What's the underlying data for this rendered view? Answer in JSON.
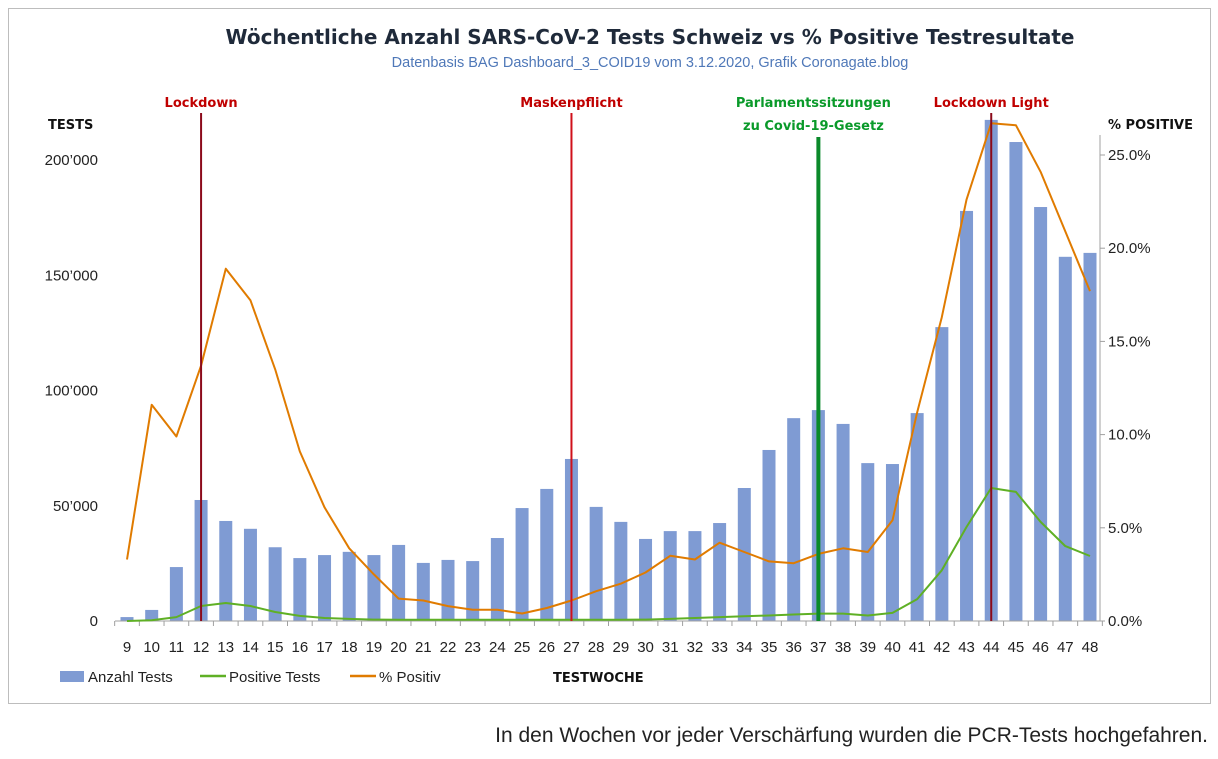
{
  "caption": "In den Wochen vor jeder Verschärfung wurden die PCR-Tests hochgefahren.",
  "chart_data": {
    "type": "bar+line",
    "title": "Wöchentliche Anzahl SARS-CoV-2 Tests Schweiz vs % Positive Testresultate",
    "subtitle": "Datenbasis BAG Dashboard_3_COID19 vom 3.12.2020, Grafik Coronagate.blog",
    "xlabel": "TESTWOCHE",
    "ylabel_left": "TESTS",
    "ylabel_right": "% POSITIVE",
    "ylim_left": [
      0,
      200000
    ],
    "ylim_right": [
      0,
      25
    ],
    "left_ticks": [
      {
        "v": 0,
        "label": "0"
      },
      {
        "v": 50000,
        "label": "50’000"
      },
      {
        "v": 100000,
        "label": "100’000"
      },
      {
        "v": 150000,
        "label": "150’000"
      },
      {
        "v": 200000,
        "label": "200’000"
      }
    ],
    "right_ticks": [
      {
        "v": 0,
        "label": "0.0%"
      },
      {
        "v": 5,
        "label": "5.0%"
      },
      {
        "v": 10,
        "label": "10.0%"
      },
      {
        "v": 15,
        "label": "15.0%"
      },
      {
        "v": 20,
        "label": "20.0%"
      },
      {
        "v": 25,
        "label": "25.0%"
      }
    ],
    "categories": [
      "9",
      "10",
      "11",
      "12",
      "13",
      "14",
      "15",
      "16",
      "17",
      "18",
      "19",
      "20",
      "21",
      "22",
      "23",
      "24",
      "25",
      "26",
      "27",
      "28",
      "29",
      "30",
      "31",
      "32",
      "33",
      "34",
      "35",
      "36",
      "37",
      "38",
      "39",
      "40",
      "41",
      "42",
      "43",
      "44",
      "45",
      "46",
      "47",
      "48"
    ],
    "series": [
      {
        "name": "Anzahl Tests",
        "type": "bar",
        "axis": "left",
        "color": "#7f9bd3",
        "values": [
          1700,
          4800,
          23400,
          52500,
          43400,
          40000,
          32000,
          27300,
          28600,
          30000,
          28600,
          33000,
          25200,
          26500,
          26000,
          36000,
          49000,
          57300,
          70300,
          49500,
          43000,
          35600,
          39000,
          39000,
          42500,
          57700,
          74200,
          88000,
          91500,
          85500,
          68500,
          68100,
          90200,
          127500,
          177900,
          217400,
          207800,
          179600,
          158000,
          159700
        ]
      },
      {
        "name": "Positive Tests",
        "type": "line",
        "axis": "left",
        "color": "#5fb025",
        "values": [
          0,
          300,
          1700,
          6500,
          7800,
          6500,
          3900,
          2200,
          1300,
          900,
          600,
          500,
          500,
          500,
          500,
          500,
          500,
          500,
          500,
          500,
          500,
          600,
          900,
          1300,
          1700,
          2100,
          2400,
          2800,
          3200,
          3200,
          2400,
          3500,
          9500,
          22000,
          40800,
          57700,
          56000,
          43000,
          32500,
          28200
        ]
      },
      {
        "name": "% Positiv",
        "type": "line",
        "axis": "right",
        "color": "#e07b00",
        "values": [
          3.3,
          11.6,
          9.9,
          13.7,
          18.9,
          17.2,
          13.5,
          9.1,
          6.1,
          3.9,
          2.5,
          1.2,
          1.1,
          0.8,
          0.6,
          0.6,
          0.4,
          0.7,
          1.1,
          1.6,
          2.0,
          2.6,
          3.5,
          3.3,
          4.2,
          3.7,
          3.2,
          3.1,
          3.6,
          3.9,
          3.7,
          5.4,
          11.2,
          16.3,
          22.6,
          26.7,
          26.6,
          24.1,
          20.9,
          17.7
        ]
      }
    ],
    "annotations": [
      {
        "week": "12",
        "label": [
          "Lockdown"
        ],
        "color": "#c00000",
        "line_color": "#8b0a1a"
      },
      {
        "week": "27",
        "label": [
          "Maskenpflicht"
        ],
        "color": "#c00000",
        "line_color": "#d0101a"
      },
      {
        "week": "37",
        "label": [
          "Parlamentssitzungen",
          "zu Covid-19-Gesetz"
        ],
        "color": "#0a9a2a",
        "line_color": "#0a8a2a"
      },
      {
        "week": "44",
        "label": [
          "Lockdown Light"
        ],
        "color": "#c00000",
        "line_color": "#8b0a1a"
      }
    ],
    "legend": "bottom-left",
    "grid": false
  }
}
